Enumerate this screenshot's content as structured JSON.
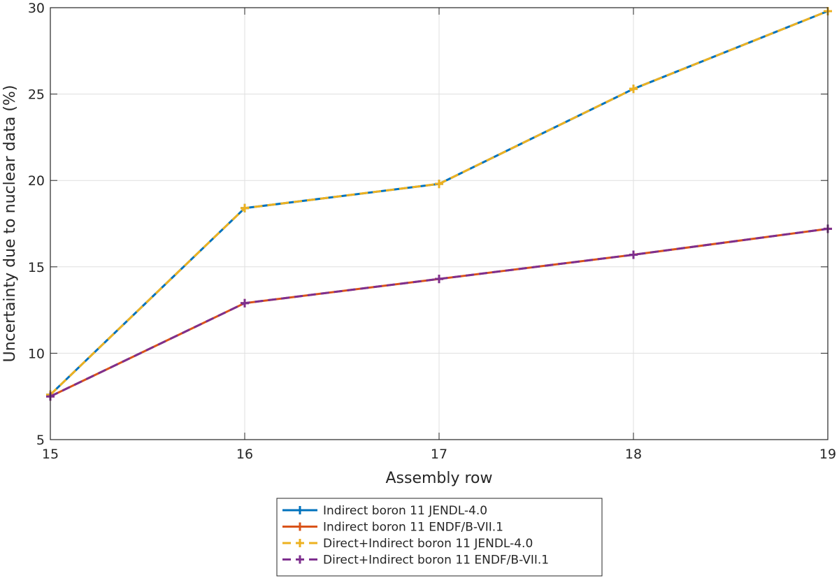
{
  "chart_data": {
    "type": "line",
    "title": "",
    "xlabel": "Assembly row",
    "ylabel": "Uncertainty due to nuclear data (%)",
    "xlim": [
      15,
      19
    ],
    "ylim": [
      5,
      30
    ],
    "xticks": [
      15,
      16,
      17,
      18,
      19
    ],
    "yticks": [
      5,
      10,
      15,
      20,
      25,
      30
    ],
    "grid": true,
    "legend_location": "below plot, centered",
    "x": [
      15,
      16,
      17,
      18,
      19
    ],
    "series": [
      {
        "name": "Indirect boron 11 JENDL-4.0",
        "color": "#0072BD",
        "dashed": false,
        "marker": "+",
        "values": [
          7.6,
          18.4,
          19.8,
          25.3,
          29.8
        ]
      },
      {
        "name": "Indirect boron 11 ENDF/B-VII.1",
        "color": "#D95319",
        "dashed": false,
        "marker": "+",
        "values": [
          7.5,
          12.9,
          14.3,
          15.7,
          17.2
        ]
      },
      {
        "name": "Direct+Indirect boron 11 JENDL-4.0",
        "color": "#EDB120",
        "dashed": true,
        "marker": "+",
        "values": [
          7.6,
          18.4,
          19.8,
          25.3,
          29.8
        ]
      },
      {
        "name": "Direct+Indirect boron 11 ENDF/B-VII.1",
        "color": "#7E2F8E",
        "dashed": true,
        "marker": "+",
        "values": [
          7.5,
          12.9,
          14.3,
          15.7,
          17.2
        ]
      }
    ]
  }
}
